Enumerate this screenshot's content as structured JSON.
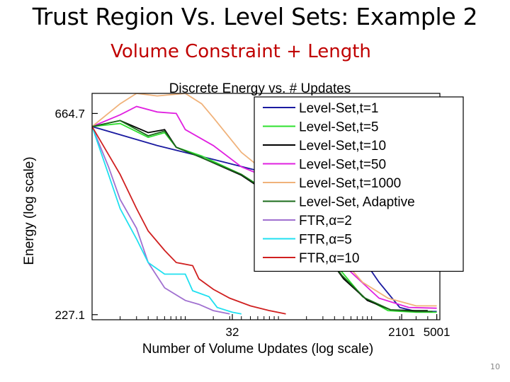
{
  "slide": {
    "title": "Trust Region Vs. Level Sets: Example 2",
    "subtitle": "Volume Constraint + Length",
    "page_number": "10"
  },
  "chart_data": {
    "type": "line",
    "title": "Discrete Energy vs. # Updates",
    "xlabel": "Number of Volume Updates (log scale)",
    "ylabel": "Energy (log scale)",
    "x_scale": "log",
    "y_scale": "log",
    "xlim": [
      1,
      5400
    ],
    "ylim": [
      221,
      740
    ],
    "x_ticks": [
      32,
      2101,
      5001
    ],
    "x_tick_labels": [
      "32",
      "2101",
      "5001"
    ],
    "y_ticks": [
      227.1,
      664.7
    ],
    "y_tick_labels": [
      "227.1",
      "664.7"
    ],
    "grid": false,
    "legend_position": "top-right",
    "series": [
      {
        "name": "Level-Set,t=1",
        "color": "#1a1aa0",
        "points": [
          [
            1,
            620
          ],
          [
            5,
            560
          ],
          [
            20,
            520
          ],
          [
            60,
            490
          ],
          [
            150,
            450
          ],
          [
            300,
            400
          ],
          [
            700,
            320
          ],
          [
            1200,
            270
          ],
          [
            2000,
            236
          ],
          [
            3000,
            231
          ],
          [
            5000,
            231
          ]
        ]
      },
      {
        "name": "Level-Set,t=5",
        "color": "#2ee02e",
        "points": [
          [
            1,
            620
          ],
          [
            2,
            630
          ],
          [
            4,
            585
          ],
          [
            6,
            600
          ],
          [
            8,
            555
          ],
          [
            15,
            530
          ],
          [
            40,
            480
          ],
          [
            90,
            430
          ],
          [
            160,
            390
          ],
          [
            280,
            330
          ],
          [
            450,
            290
          ],
          [
            800,
            250
          ],
          [
            1500,
            232
          ],
          [
            3000,
            230
          ],
          [
            5000,
            230
          ]
        ]
      },
      {
        "name": "Level-Set,t=10",
        "color": "#000000",
        "points": [
          [
            1,
            620
          ],
          [
            2,
            640
          ],
          [
            4,
            600
          ],
          [
            6,
            610
          ],
          [
            8,
            555
          ],
          [
            15,
            525
          ],
          [
            40,
            478
          ],
          [
            90,
            425
          ],
          [
            170,
            380
          ],
          [
            300,
            320
          ],
          [
            500,
            275
          ],
          [
            900,
            245
          ],
          [
            1600,
            233
          ],
          [
            3000,
            232
          ],
          [
            4000,
            232
          ]
        ]
      },
      {
        "name": "Level-Set,t=50",
        "color": "#e020e0",
        "points": [
          [
            1,
            620
          ],
          [
            2,
            660
          ],
          [
            3,
            690
          ],
          [
            5,
            670
          ],
          [
            8,
            665
          ],
          [
            10,
            610
          ],
          [
            20,
            560
          ],
          [
            40,
            500
          ],
          [
            80,
            470
          ],
          [
            110,
            440
          ],
          [
            180,
            400
          ],
          [
            300,
            350
          ],
          [
            600,
            285
          ],
          [
            1200,
            248
          ],
          [
            2500,
            236
          ],
          [
            5000,
            235
          ]
        ]
      },
      {
        "name": "Level-Set,t=1000",
        "color": "#f0b27a",
        "points": [
          [
            1,
            620
          ],
          [
            2,
            700
          ],
          [
            3,
            740
          ],
          [
            5,
            730
          ],
          [
            10,
            740
          ],
          [
            15,
            700
          ],
          [
            20,
            650
          ],
          [
            40,
            540
          ],
          [
            100,
            460
          ],
          [
            200,
            390
          ],
          [
            400,
            320
          ],
          [
            800,
            270
          ],
          [
            1500,
            248
          ],
          [
            3000,
            238
          ],
          [
            5000,
            238
          ]
        ]
      },
      {
        "name": "Level-Set, Adaptive",
        "color": "#1b6b1b",
        "points": [
          [
            1,
            620
          ],
          [
            2,
            640
          ],
          [
            4,
            590
          ],
          [
            6,
            605
          ],
          [
            8,
            555
          ],
          [
            15,
            525
          ],
          [
            40,
            480
          ],
          [
            90,
            428
          ],
          [
            165,
            385
          ],
          [
            290,
            325
          ],
          [
            480,
            280
          ],
          [
            850,
            248
          ],
          [
            1600,
            233
          ],
          [
            3000,
            231
          ],
          [
            4500,
            231
          ]
        ]
      },
      {
        "name": "FTR,α=2",
        "color": "#a070d0",
        "points": [
          [
            1,
            620
          ],
          [
            1.5,
            500
          ],
          [
            2,
            420
          ],
          [
            3,
            360
          ],
          [
            4,
            300
          ],
          [
            6,
            262
          ],
          [
            10,
            245
          ],
          [
            14,
            240
          ],
          [
            20,
            232
          ],
          [
            30,
            228
          ]
        ]
      },
      {
        "name": "FTR,α=5",
        "color": "#20e0f0",
        "points": [
          [
            1,
            620
          ],
          [
            1.5,
            480
          ],
          [
            2,
            400
          ],
          [
            3,
            340
          ],
          [
            4,
            300
          ],
          [
            6,
            282
          ],
          [
            10,
            282
          ],
          [
            12,
            258
          ],
          [
            18,
            250
          ],
          [
            22,
            236
          ],
          [
            32,
            230
          ],
          [
            40,
            228
          ]
        ]
      },
      {
        "name": "FTR,α=10",
        "color": "#d02020",
        "points": [
          [
            1,
            620
          ],
          [
            2,
            480
          ],
          [
            3,
            400
          ],
          [
            4,
            355
          ],
          [
            6,
            320
          ],
          [
            8,
            300
          ],
          [
            12,
            295
          ],
          [
            14,
            275
          ],
          [
            20,
            260
          ],
          [
            30,
            248
          ],
          [
            50,
            238
          ],
          [
            80,
            232
          ],
          [
            120,
            228
          ]
        ]
      }
    ]
  }
}
